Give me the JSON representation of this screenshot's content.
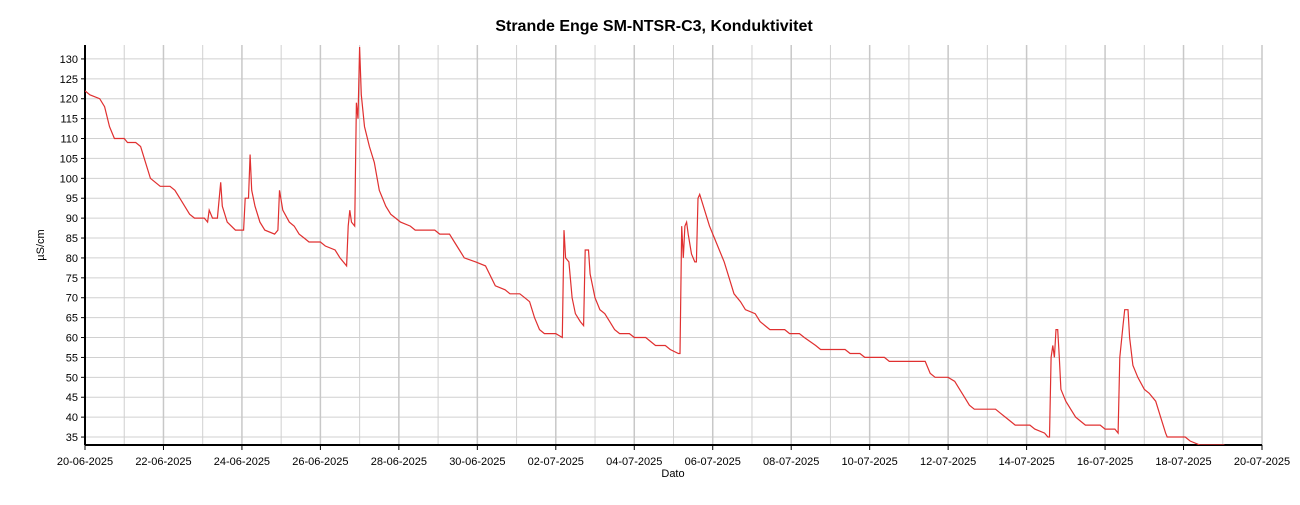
{
  "chart_data": {
    "type": "line",
    "title": "Strande Enge SM-NTSR-C3, Konduktivitet",
    "xlabel": "Dato",
    "ylabel": "µS/cm",
    "grid": true,
    "xlim": [
      "2025-06-20",
      "2025-07-20"
    ],
    "xticks": [
      {
        "value": "2025-06-20",
        "label": "20-06-2025"
      },
      {
        "value": "2025-06-22",
        "label": "22-06-2025"
      },
      {
        "value": "2025-06-24",
        "label": "24-06-2025"
      },
      {
        "value": "2025-06-26",
        "label": "26-06-2025"
      },
      {
        "value": "2025-06-28",
        "label": "28-06-2025"
      },
      {
        "value": "2025-06-30",
        "label": "30-06-2025"
      },
      {
        "value": "2025-07-02",
        "label": "02-07-2025"
      },
      {
        "value": "2025-07-04",
        "label": "04-07-2025"
      },
      {
        "value": "2025-07-06",
        "label": "06-07-2025"
      },
      {
        "value": "2025-07-08",
        "label": "08-07-2025"
      },
      {
        "value": "2025-07-10",
        "label": "10-07-2025"
      },
      {
        "value": "2025-07-12",
        "label": "12-07-2025"
      },
      {
        "value": "2025-07-14",
        "label": "14-07-2025"
      },
      {
        "value": "2025-07-16",
        "label": "16-07-2025"
      },
      {
        "value": "2025-07-18",
        "label": "18-07-2025"
      },
      {
        "value": "2025-07-20",
        "label": "20-07-2025"
      }
    ],
    "xticks_minor": [
      "2025-06-21",
      "2025-06-23",
      "2025-06-25",
      "2025-06-27",
      "2025-06-29",
      "2025-07-01",
      "2025-07-03",
      "2025-07-05",
      "2025-07-07",
      "2025-07-09",
      "2025-07-11",
      "2025-07-13",
      "2025-07-15",
      "2025-07-17",
      "2025-07-19"
    ],
    "ylim": [
      33,
      133.5
    ],
    "yticks": [
      35,
      40,
      45,
      50,
      55,
      60,
      65,
      70,
      75,
      80,
      85,
      90,
      95,
      100,
      105,
      110,
      115,
      120,
      125,
      130
    ],
    "x": [
      "2025-06-20 00:00",
      "2025-06-20 03:00",
      "2025-06-20 09:00",
      "2025-06-20 12:00",
      "2025-06-20 15:00",
      "2025-06-20 18:00",
      "2025-06-21 00:00",
      "2025-06-21 02:00",
      "2025-06-21 07:00",
      "2025-06-21 10:00",
      "2025-06-21 13:00",
      "2025-06-21 16:00",
      "2025-06-21 19:00",
      "2025-06-21 22:00",
      "2025-06-22 04:00",
      "2025-06-22 07:00",
      "2025-06-22 10:00",
      "2025-06-22 13:00",
      "2025-06-22 16:00",
      "2025-06-22 19:00",
      "2025-06-23 01:00",
      "2025-06-23 03:00",
      "2025-06-23 04:00",
      "2025-06-23 06:00",
      "2025-06-23 09:00",
      "2025-06-23 11:00",
      "2025-06-23 12:00",
      "2025-06-23 15:00",
      "2025-06-23 20:00",
      "2025-06-24 01:00",
      "2025-06-24 02:00",
      "2025-06-24 04:00",
      "2025-06-24 05:00",
      "2025-06-24 06:00",
      "2025-06-24 08:00",
      "2025-06-24 11:00",
      "2025-06-24 14:00",
      "2025-06-24 20:00",
      "2025-06-24 22:00",
      "2025-06-24 23:00",
      "2025-06-25 01:00",
      "2025-06-25 05:00",
      "2025-06-25 08:00",
      "2025-06-25 11:00",
      "2025-06-25 14:00",
      "2025-06-25 17:00",
      "2025-06-26 00:00",
      "2025-06-26 03:00",
      "2025-06-26 09:00",
      "2025-06-26 12:00",
      "2025-06-26 16:00",
      "2025-06-26 17:00",
      "2025-06-26 18:00",
      "2025-06-26 19:00",
      "2025-06-26 21:00",
      "2025-06-26 22:00",
      "2025-06-26 23:00",
      "2025-06-27 00:00",
      "2025-06-27 01:00",
      "2025-06-27 03:00",
      "2025-06-27 06:00",
      "2025-06-27 09:00",
      "2025-06-27 12:00",
      "2025-06-27 16:00",
      "2025-06-27 19:00",
      "2025-06-27 22:00",
      "2025-06-28 01:00",
      "2025-06-28 07:00",
      "2025-06-28 10:00",
      "2025-06-28 22:00",
      "2025-06-29 01:00",
      "2025-06-29 07:00",
      "2025-06-29 10:00",
      "2025-06-29 13:00",
      "2025-06-29 16:00",
      "2025-06-29 23:00",
      "2025-06-30 05:00",
      "2025-06-30 11:00",
      "2025-06-30 17:00",
      "2025-06-30 20:00",
      "2025-07-01 02:00",
      "2025-07-01 05:00",
      "2025-07-01 08:00",
      "2025-07-01 11:00",
      "2025-07-01 14:00",
      "2025-07-01 17:00",
      "2025-07-02 00:00",
      "2025-07-02 04:00",
      "2025-07-02 05:00",
      "2025-07-02 06:00",
      "2025-07-02 08:00",
      "2025-07-02 10:00",
      "2025-07-02 12:00",
      "2025-07-02 15:00",
      "2025-07-02 17:00",
      "2025-07-02 18:00",
      "2025-07-02 20:00",
      "2025-07-02 21:00",
      "2025-07-03 00:00",
      "2025-07-03 03:00",
      "2025-07-03 06:00",
      "2025-07-03 09:00",
      "2025-07-03 12:00",
      "2025-07-03 15:00",
      "2025-07-03 21:00",
      "2025-07-04 00:00",
      "2025-07-04 07:00",
      "2025-07-04 10:00",
      "2025-07-04 13:00",
      "2025-07-04 19:00",
      "2025-07-04 22:00",
      "2025-07-05 03:00",
      "2025-07-05 04:00",
      "2025-07-05 05:00",
      "2025-07-05 06:00",
      "2025-07-05 07:00",
      "2025-07-05 08:00",
      "2025-07-05 09:00",
      "2025-07-05 11:00",
      "2025-07-05 13:00",
      "2025-07-05 14:00",
      "2025-07-05 15:00",
      "2025-07-05 16:00",
      "2025-07-05 19:00",
      "2025-07-05 22:00",
      "2025-07-06 01:00",
      "2025-07-06 04:00",
      "2025-07-06 07:00",
      "2025-07-06 10:00",
      "2025-07-06 13:00",
      "2025-07-06 17:00",
      "2025-07-06 20:00",
      "2025-07-07 02:00",
      "2025-07-07 05:00",
      "2025-07-07 08:00",
      "2025-07-07 11:00",
      "2025-07-07 20:00",
      "2025-07-07 23:00",
      "2025-07-08 05:00",
      "2025-07-08 08:00",
      "2025-07-08 15:00",
      "2025-07-08 18:00",
      "2025-07-09 09:00",
      "2025-07-09 12:00",
      "2025-07-09 18:00",
      "2025-07-09 21:00",
      "2025-07-10 09:00",
      "2025-07-10 12:00",
      "2025-07-11 10:00",
      "2025-07-11 13:00",
      "2025-07-11 16:00",
      "2025-07-12 00:00",
      "2025-07-12 04:00",
      "2025-07-12 07:00",
      "2025-07-12 10:00",
      "2025-07-12 13:00",
      "2025-07-12 16:00",
      "2025-07-13 05:00",
      "2025-07-13 08:00",
      "2025-07-13 11:00",
      "2025-07-13 14:00",
      "2025-07-13 17:00",
      "2025-07-14 02:00",
      "2025-07-14 05:00",
      "2025-07-14 11:00",
      "2025-07-14 13:00",
      "2025-07-14 14:00",
      "2025-07-14 15:00",
      "2025-07-14 16:00",
      "2025-07-14 17:00",
      "2025-07-14 18:00",
      "2025-07-14 19:00",
      "2025-07-14 20:00",
      "2025-07-14 21:00",
      "2025-07-15 00:00",
      "2025-07-15 03:00",
      "2025-07-15 06:00",
      "2025-07-15 09:00",
      "2025-07-15 12:00",
      "2025-07-15 21:00",
      "2025-07-16 00:00",
      "2025-07-16 06:00",
      "2025-07-16 08:00",
      "2025-07-16 09:00",
      "2025-07-16 11:00",
      "2025-07-16 12:00",
      "2025-07-16 14:00",
      "2025-07-16 15:00",
      "2025-07-16 17:00",
      "2025-07-16 20:00",
      "2025-07-17 00:00",
      "2025-07-17 03:00",
      "2025-07-17 07:00",
      "2025-07-17 10:00",
      "2025-07-17 13:00",
      "2025-07-17 14:00",
      "2025-07-18 01:00",
      "2025-07-18 04:00",
      "2025-07-18 10:00",
      "2025-07-19 01:00"
    ],
    "series": [
      {
        "color": "#e03030",
        "values": [
          122,
          121,
          120,
          118,
          113,
          110,
          110,
          109,
          109,
          108,
          104,
          100,
          99,
          98,
          98,
          97,
          95,
          93,
          91,
          90,
          90,
          89,
          92,
          90,
          90,
          99,
          93,
          89,
          87,
          87,
          95,
          95,
          106,
          97,
          93,
          89,
          87,
          86,
          87,
          97,
          92,
          89,
          88,
          86,
          85,
          84,
          84,
          83,
          82,
          80,
          78,
          88,
          92,
          89,
          88,
          119,
          115,
          133,
          121,
          113,
          108,
          104,
          97,
          93,
          91,
          90,
          89,
          88,
          87,
          87,
          86,
          86,
          84,
          82,
          80,
          79,
          78,
          73,
          72,
          71,
          71,
          70,
          69,
          65,
          62,
          61,
          61,
          60,
          87,
          80,
          79,
          70,
          66,
          64,
          63,
          82,
          82,
          76,
          70,
          67,
          66,
          64,
          62,
          61,
          61,
          60,
          60,
          59,
          58,
          58,
          57,
          56,
          56,
          88,
          80,
          88,
          89,
          86,
          81,
          79,
          79,
          95,
          96,
          92,
          88,
          85,
          82,
          79,
          75,
          71,
          69,
          67,
          66,
          64,
          63,
          62,
          62,
          61,
          61,
          60,
          58,
          57,
          57,
          56,
          56,
          55,
          55,
          54,
          54,
          51,
          50,
          50,
          49,
          47,
          45,
          43,
          42,
          42,
          41,
          40,
          39,
          38,
          38,
          37,
          36,
          35,
          35,
          55,
          58,
          55,
          62,
          62,
          55,
          47,
          44,
          42,
          40,
          39,
          38,
          38,
          37,
          37,
          36,
          55,
          63,
          67,
          67,
          60,
          53,
          50,
          47,
          46,
          44,
          40,
          36,
          35,
          35,
          34,
          33,
          33
        ]
      }
    ]
  }
}
